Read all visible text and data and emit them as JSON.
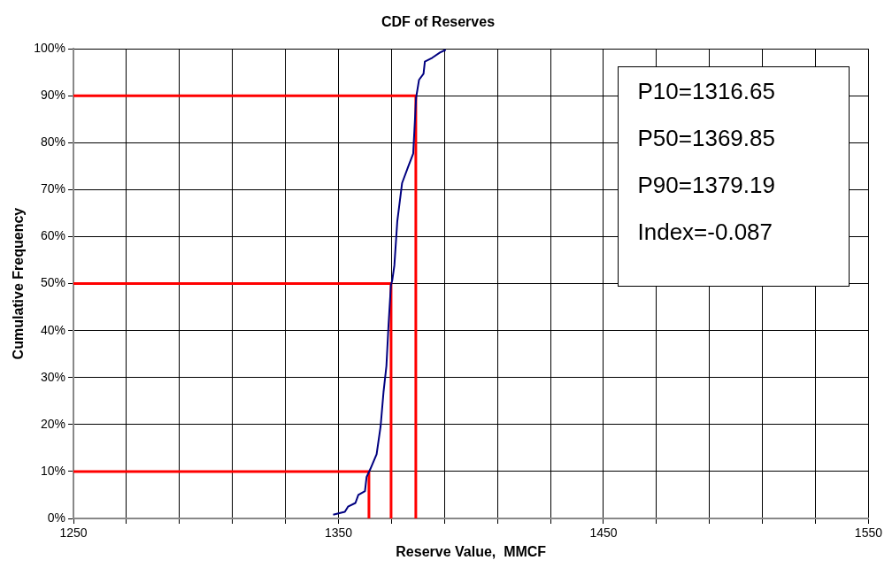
{
  "chart_data": {
    "type": "line",
    "title": "CDF of Reserves",
    "xlabel": "Reserve Value,  MMCF",
    "ylabel": "Cumulative Frequency",
    "xlim": [
      1250,
      1550
    ],
    "xticks": [
      1250,
      {
        "value": 1270,
        "label": null
      },
      {
        "value": 1290,
        "label": null
      },
      {
        "value": 1310,
        "label": null
      },
      {
        "value": 1330,
        "label": null
      },
      1350,
      {
        "value": 1370,
        "label": null
      },
      {
        "value": 1390,
        "label": null
      },
      {
        "value": 1410,
        "label": null
      },
      {
        "value": 1430,
        "label": null
      },
      1450,
      {
        "value": 1470,
        "label": null
      },
      {
        "value": 1490,
        "label": null
      },
      {
        "value": 1510,
        "label": null
      },
      {
        "value": 1530,
        "label": null
      },
      1550
    ],
    "ylim": [
      0,
      100
    ],
    "yticks": [
      {
        "value": 0,
        "label": "0%"
      },
      {
        "value": 10,
        "label": "10%"
      },
      {
        "value": 20,
        "label": "20%"
      },
      {
        "value": 30,
        "label": "30%"
      },
      {
        "value": 40,
        "label": "40%"
      },
      {
        "value": 50,
        "label": "50%"
      },
      {
        "value": 60,
        "label": "60%"
      },
      {
        "value": 70,
        "label": "70%"
      },
      {
        "value": 80,
        "label": "80%"
      },
      {
        "value": 90,
        "label": "90%"
      },
      {
        "value": 100,
        "label": "100%"
      }
    ],
    "grid": true,
    "legend": false,
    "marker": "none",
    "line_style": "solid",
    "series": [
      {
        "color": "#000080",
        "x": [
          1348,
          1352.4,
          1353.6,
          1356.4,
          1357.5,
          1360,
          1360.6,
          1362,
          1364.4,
          1365.9,
          1367,
          1368.1,
          1368.9,
          1369.8,
          1370.3,
          1371.1,
          1372.2,
          1374,
          1376.5,
          1378.2,
          1379.3,
          1380.4,
          1382.1,
          1382.6,
          1385.4,
          1388.3,
          1390.5
        ],
        "values": [
          0.8,
          1.4,
          2.5,
          3.3,
          5,
          5.8,
          8.8,
          10.5,
          13.7,
          19.6,
          26.9,
          32.5,
          41.3,
          49.7,
          50.7,
          53.9,
          63.3,
          71.4,
          75.2,
          77.7,
          89.6,
          93.4,
          94.7,
          97.3,
          98.1,
          99.2,
          99.8
        ]
      },
      {
        "color": "#ff0000",
        "x": [
          1250,
          1361.5,
          1361.5
        ],
        "values": [
          10,
          10,
          0
        ]
      },
      {
        "color": "#ff0000",
        "x": [
          1250,
          1369.85,
          1369.85
        ],
        "values": [
          50,
          50,
          0
        ]
      },
      {
        "color": "#ff0000",
        "x": [
          1250,
          1379.19,
          1379.19
        ],
        "values": [
          90,
          90,
          0
        ]
      }
    ],
    "annotations": [
      "P10=1316.65",
      "P50=1369.85",
      "P90=1379.19",
      "Index=-0.087"
    ]
  }
}
